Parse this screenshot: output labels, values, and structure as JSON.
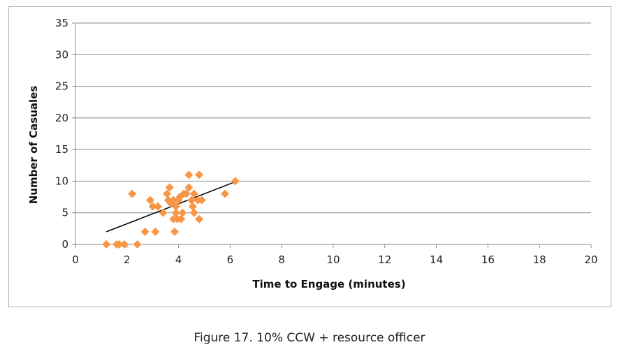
{
  "caption": "Figure 17. 10% CCW + resource officer",
  "chart_data": {
    "type": "scatter",
    "title": "",
    "xlabel": "Time to Engage (minutes)",
    "ylabel": "Number of Casuales",
    "xlim": [
      0,
      20
    ],
    "ylim": [
      0,
      35
    ],
    "xticks": [
      0,
      2,
      4,
      6,
      8,
      10,
      12,
      14,
      16,
      18,
      20
    ],
    "yticks": [
      0,
      5,
      10,
      15,
      20,
      25,
      30,
      35
    ],
    "grid": "horizontal",
    "legend": "none",
    "colors": {
      "marker": "#f79646",
      "trendline": "#000000",
      "grid": "#8c8c8c",
      "axis": "#8c8c8c"
    },
    "series": [
      {
        "marker": "diamond",
        "points": [
          [
            1.2,
            0
          ],
          [
            1.6,
            0
          ],
          [
            1.7,
            0
          ],
          [
            1.9,
            0
          ],
          [
            2.4,
            0
          ],
          [
            2.2,
            8
          ],
          [
            2.7,
            2
          ],
          [
            2.9,
            7
          ],
          [
            3.0,
            6
          ],
          [
            3.1,
            2
          ],
          [
            3.2,
            6
          ],
          [
            3.4,
            5
          ],
          [
            3.55,
            8
          ],
          [
            3.6,
            7
          ],
          [
            3.65,
            9
          ],
          [
            3.7,
            6.5
          ],
          [
            3.8,
            4
          ],
          [
            3.8,
            7
          ],
          [
            3.85,
            2
          ],
          [
            3.9,
            5
          ],
          [
            3.9,
            6
          ],
          [
            3.95,
            4
          ],
          [
            4.0,
            7
          ],
          [
            4.05,
            7.5
          ],
          [
            4.1,
            4
          ],
          [
            4.15,
            5
          ],
          [
            4.2,
            8
          ],
          [
            4.3,
            8
          ],
          [
            4.4,
            9
          ],
          [
            4.4,
            11
          ],
          [
            4.5,
            7
          ],
          [
            4.55,
            6
          ],
          [
            4.6,
            8
          ],
          [
            4.6,
            5
          ],
          [
            4.75,
            7
          ],
          [
            4.8,
            4
          ],
          [
            4.8,
            11
          ],
          [
            4.9,
            7
          ],
          [
            5.8,
            8
          ],
          [
            6.2,
            10
          ]
        ]
      }
    ],
    "trendline": {
      "x": [
        1.2,
        6.2
      ],
      "y": [
        2.0,
        9.9
      ]
    }
  }
}
